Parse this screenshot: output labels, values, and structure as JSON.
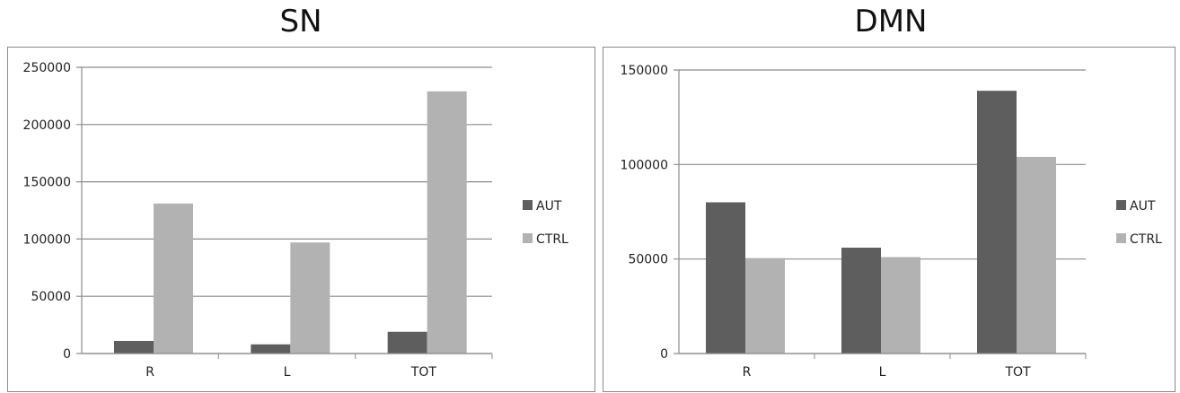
{
  "colors": {
    "AUT": "#5e5e5e",
    "CTRL": "#b2b2b2",
    "grid": "#8c8c8c",
    "axis": "#8c8c8c"
  },
  "chart_data": [
    {
      "type": "bar",
      "title": "SN",
      "categories": [
        "R",
        "L",
        "TOT"
      ],
      "series": [
        {
          "name": "AUT",
          "values": [
            11000,
            8000,
            19000
          ]
        },
        {
          "name": "CTRL",
          "values": [
            131000,
            97000,
            229000
          ]
        }
      ],
      "ylim": [
        0,
        250000
      ],
      "yticks": [
        0,
        50000,
        100000,
        150000,
        200000,
        250000
      ],
      "grid": true,
      "legend": "right"
    },
    {
      "type": "bar",
      "title": "DMN",
      "categories": [
        "R",
        "L",
        "TOT"
      ],
      "series": [
        {
          "name": "AUT",
          "values": [
            80000,
            56000,
            139000
          ]
        },
        {
          "name": "CTRL",
          "values": [
            50500,
            51000,
            104000
          ]
        }
      ],
      "ylim": [
        0,
        150000
      ],
      "yticks": [
        0,
        50000,
        100000,
        150000
      ],
      "grid": true,
      "legend": "right"
    }
  ]
}
